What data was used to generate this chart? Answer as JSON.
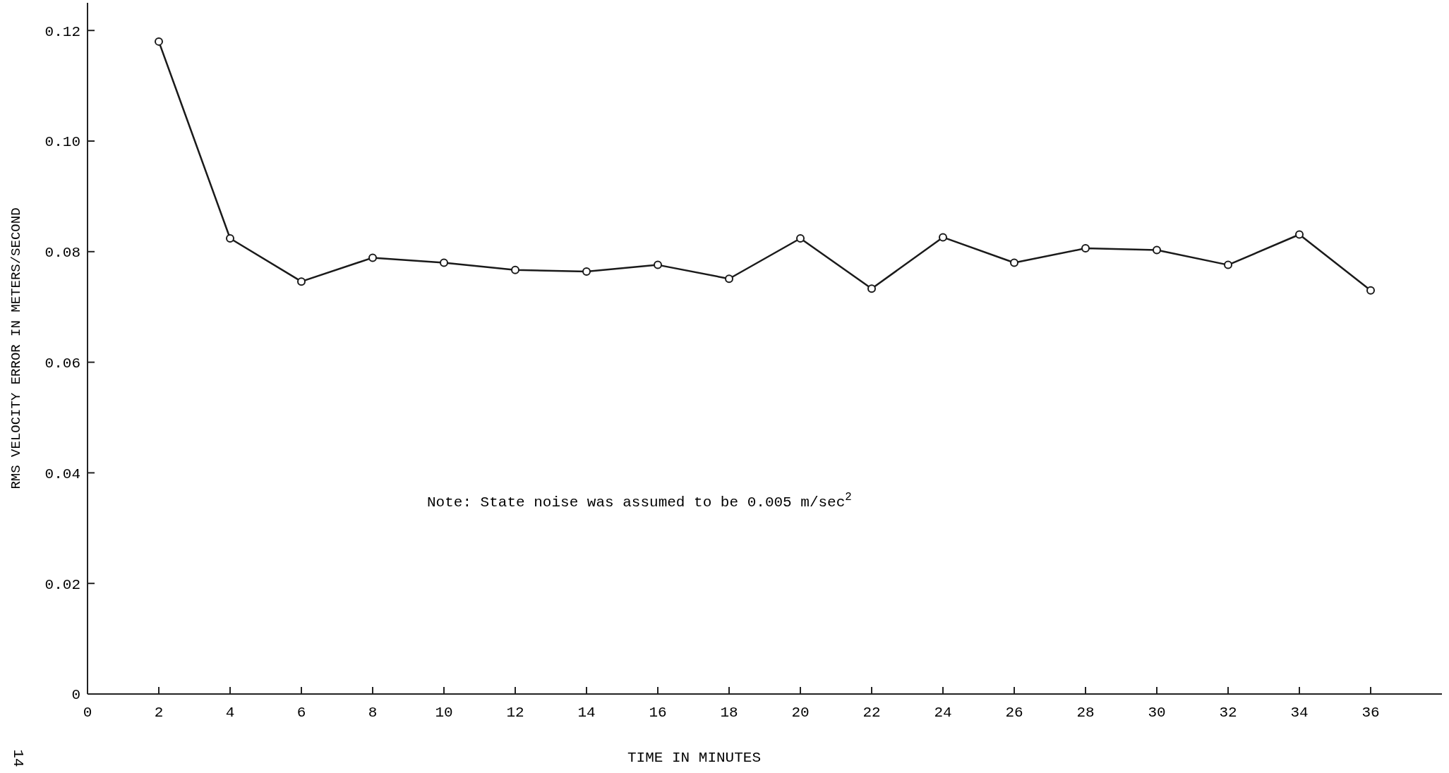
{
  "chart_data": {
    "type": "line",
    "xlabel": "TIME IN MINUTES",
    "ylabel": "RMS VELOCITY ERROR IN METERS/SECOND",
    "annotations": [
      "Note:  State noise was assumed to be 0.005 m/sec$^{2}$",
      "14"
    ],
    "x": [
      2,
      4,
      6,
      8,
      10,
      12,
      14,
      16,
      18,
      20,
      22,
      24,
      26,
      28,
      30,
      32,
      34,
      36
    ],
    "series": [
      {
        "color": "#1a1a1a",
        "values": [
          0.118,
          0.0824,
          0.0746,
          0.0789,
          0.078,
          0.0767,
          0.0764,
          0.0776,
          0.0751,
          0.0824,
          0.0733,
          0.0826,
          0.078,
          0.0806,
          0.0803,
          0.0776,
          0.0831,
          0.073
        ]
      }
    ],
    "xlim": [
      0,
      38
    ],
    "ylim": [
      0,
      0.125
    ],
    "xticks": [
      0,
      2,
      4,
      6,
      8,
      10,
      12,
      14,
      16,
      18,
      20,
      22,
      24,
      26,
      28,
      30,
      32,
      34,
      36
    ],
    "yticks": [
      0,
      0.02,
      0.04,
      0.06,
      0.08,
      {
        "value": 0.1,
        "label": "0.10"
      },
      0.12
    ],
    "marker": "circle",
    "line_style": "solid"
  }
}
